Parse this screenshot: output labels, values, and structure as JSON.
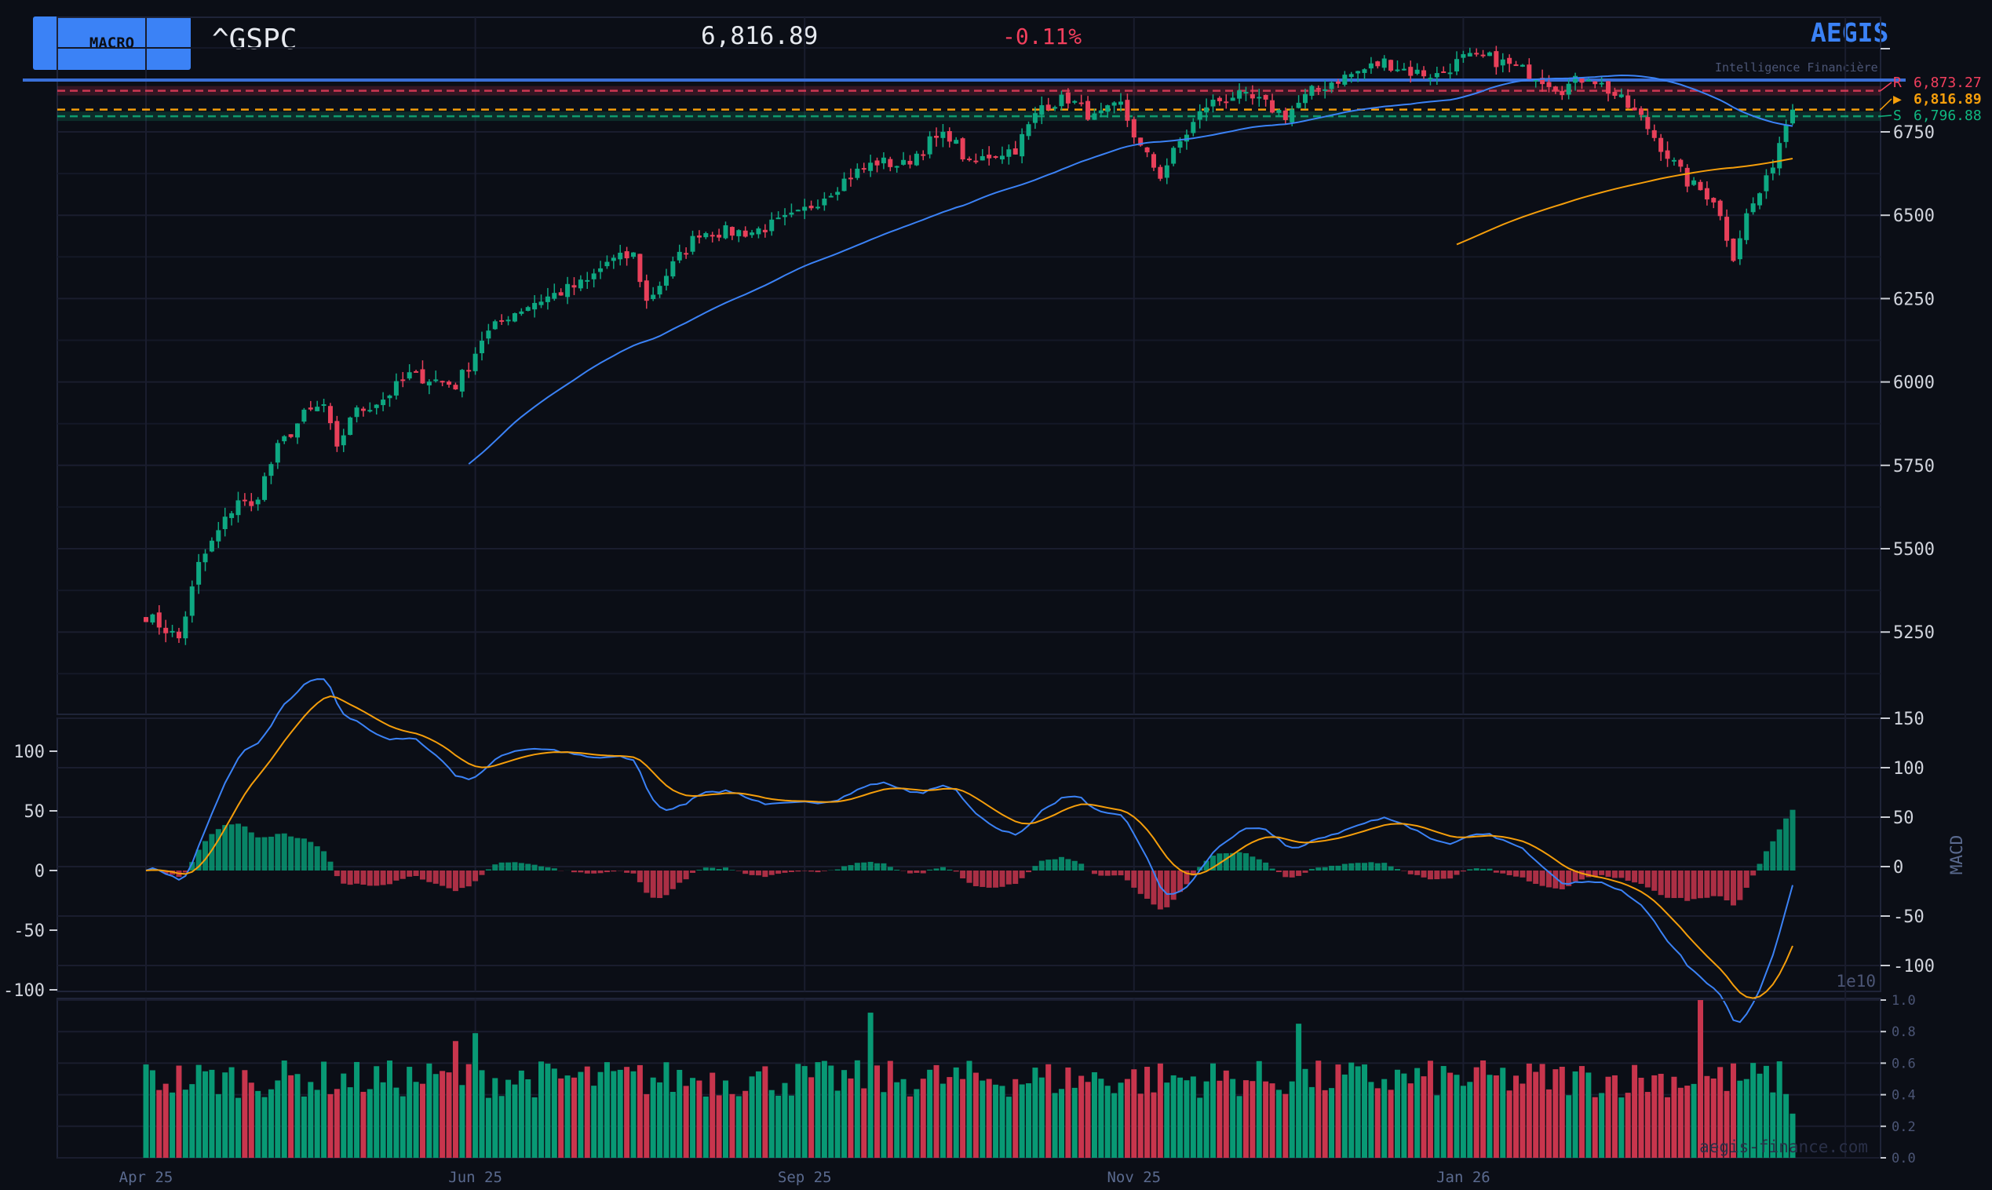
{
  "header": {
    "macro_button": "MACRO",
    "ticker": "^GSPC",
    "price": "6,816.89",
    "change": "-0.11%",
    "brand": "AEGIS",
    "tagline": "Intelligence Financière"
  },
  "levels": {
    "resistance": {
      "label": "R",
      "value": 6873.27,
      "text": "6,873.27",
      "color": "#f23f5d"
    },
    "current": {
      "label": "▶",
      "value": 6816.89,
      "text": "6,816.89",
      "color": "#f59e0b"
    },
    "support": {
      "label": "S",
      "value": 6796.88,
      "text": "6,796.88",
      "color": "#10b981"
    }
  },
  "watermark": "aegis-finance.com",
  "colors": {
    "up": "#0ea882",
    "down": "#e8405a",
    "vol_up": "#089974",
    "vol_down": "#c8354d",
    "sma_fast": "#3b82f6",
    "sma_slow": "#f59e0b",
    "macd": "#3b82f6",
    "signal": "#f59e0b",
    "bg": "#0b0e16",
    "grid": "#1a1d2e"
  },
  "chart_data": [
    {
      "type": "candlestick",
      "title": "^GSPC",
      "x_ticks": [
        {
          "index": 0,
          "label": "Apr 25"
        },
        {
          "index": 50,
          "label": "Jun 25"
        },
        {
          "index": 100,
          "label": "Sep 25"
        },
        {
          "index": 150,
          "label": "Nov 25"
        },
        {
          "index": 200,
          "label": "Jan 26"
        }
      ],
      "y_ticks": [
        5250,
        5500,
        5750,
        6000,
        6250,
        6500,
        6750
      ],
      "ylim": [
        5003,
        7094
      ],
      "n_days": 251,
      "close_anchors": [
        [
          0,
          5300
        ],
        [
          5,
          5230
        ],
        [
          8,
          5450
        ],
        [
          11,
          5550
        ],
        [
          14,
          5650
        ],
        [
          16,
          5620
        ],
        [
          20,
          5800
        ],
        [
          24,
          5900
        ],
        [
          27,
          5930
        ],
        [
          29,
          5790
        ],
        [
          31,
          5900
        ],
        [
          36,
          5950
        ],
        [
          40,
          6020
        ],
        [
          43,
          6010
        ],
        [
          47,
          5990
        ],
        [
          49,
          6050
        ],
        [
          51,
          6130
        ],
        [
          55,
          6200
        ],
        [
          59,
          6240
        ],
        [
          63,
          6270
        ],
        [
          67,
          6300
        ],
        [
          70,
          6360
        ],
        [
          74,
          6380
        ],
        [
          76,
          6240
        ],
        [
          80,
          6350
        ],
        [
          84,
          6450
        ],
        [
          88,
          6450
        ],
        [
          92,
          6450
        ],
        [
          95,
          6470
        ],
        [
          99,
          6500
        ],
        [
          103,
          6560
        ],
        [
          107,
          6620
        ],
        [
          111,
          6660
        ],
        [
          115,
          6650
        ],
        [
          119,
          6720
        ],
        [
          122,
          6740
        ],
        [
          125,
          6650
        ],
        [
          128,
          6680
        ],
        [
          132,
          6700
        ],
        [
          136,
          6830
        ],
        [
          140,
          6850
        ],
        [
          144,
          6790
        ],
        [
          148,
          6830
        ],
        [
          151,
          6700
        ],
        [
          154,
          6620
        ],
        [
          157,
          6720
        ],
        [
          161,
          6830
        ],
        [
          165,
          6860
        ],
        [
          169,
          6840
        ],
        [
          173,
          6800
        ],
        [
          177,
          6870
        ],
        [
          180,
          6900
        ],
        [
          184,
          6930
        ],
        [
          188,
          6960
        ],
        [
          192,
          6930
        ],
        [
          196,
          6920
        ],
        [
          200,
          6970
        ],
        [
          204,
          6970
        ],
        [
          207,
          6950
        ],
        [
          211,
          6920
        ],
        [
          215,
          6880
        ],
        [
          219,
          6920
        ],
        [
          223,
          6860
        ],
        [
          227,
          6790
        ],
        [
          231,
          6680
        ],
        [
          234,
          6600
        ],
        [
          238,
          6550
        ],
        [
          241,
          6380
        ],
        [
          243,
          6500
        ],
        [
          246,
          6600
        ],
        [
          249,
          6780
        ],
        [
          250,
          6816.89
        ]
      ],
      "overlays": [
        {
          "name": "SMA 50",
          "period": 50
        },
        {
          "name": "SMA 200",
          "period": 200
        }
      ]
    },
    {
      "type": "macd",
      "ylabel": "MACD",
      "left_ticks": [
        100,
        50,
        0,
        -50,
        -100
      ],
      "right_ticks": [
        150,
        100,
        50,
        0,
        -50,
        -100
      ],
      "params": [
        12,
        26,
        9
      ]
    },
    {
      "type": "bar",
      "name": "volume",
      "scale_label": "1e10",
      "y_ticks": [
        "1.0",
        "0.8",
        "0.6",
        "0.4",
        "0.2",
        "0.0"
      ],
      "ylim": [
        0,
        1.0
      ],
      "base_range": [
        0.38,
        0.62
      ],
      "spikes": [
        [
          47,
          0.74
        ],
        [
          50,
          0.79
        ],
        [
          110,
          0.92
        ],
        [
          175,
          0.85
        ],
        [
          236,
          1.0
        ],
        [
          250,
          0.28
        ]
      ]
    }
  ]
}
